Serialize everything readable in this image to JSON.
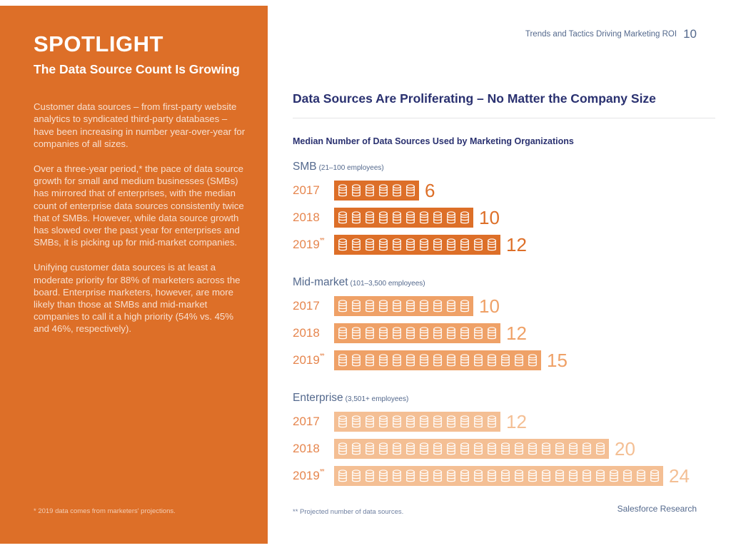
{
  "header": {
    "title": "Trends and Tactics Driving Marketing ROI",
    "page_number": "10"
  },
  "sidebar": {
    "kicker": "SPOTLIGHT",
    "title": "The Data Source Count Is Growing",
    "paragraphs": [
      "Customer data sources – from first-party website analytics to syndicated third-party databases – have been increasing in number year-over-year for companies of all sizes.",
      "Over a three-year period,* the pace of data source growth for small and medium businesses (SMBs) has mirrored that of enterprises, with the median count of enterprise data sources consistently twice that of SMBs. However, while data source growth has slowed over the past year for enterprises and SMBs, it is picking up for mid-market companies.",
      "Unifying customer data sources is at least a moderate priority for 88% of marketers across the board. Enterprise marketers, however, are more likely than those at SMBs and mid-market companies to call it a high priority (54% vs. 45% and 46%, respectively)."
    ],
    "footnote": "* 2019 data comes from marketers' projections.",
    "background_color": "#DD6F28"
  },
  "colors": {
    "orange_solid": "#DD6F28",
    "orange_mid": "#EFA167",
    "orange_light": "#F4BF94",
    "year_label": "#E6864E",
    "navy": "#2A3170",
    "slate": "#54698D"
  },
  "chart_data": {
    "type": "bar",
    "title": "Data Sources Are Proliferating – No Matter the Company Size",
    "subtitle": "Median Number of Data Sources Used by Marketing Organizations",
    "unit": "median number of data sources",
    "icon": "database-icon",
    "categories": [
      "2017",
      "2018",
      "2019**"
    ],
    "series": [
      {
        "name": "SMB",
        "sublabel": "(21–100 employees)",
        "values": [
          6,
          10,
          12
        ],
        "color": "#DD6F28"
      },
      {
        "name": "Mid-market",
        "sublabel": "(101–3,500 employees)",
        "values": [
          10,
          12,
          15
        ],
        "color": "#EFA167"
      },
      {
        "name": "Enterprise",
        "sublabel": "(3,501+ employees)",
        "values": [
          12,
          20,
          24
        ],
        "color": "#F4BF94"
      }
    ],
    "footnote": "** Projected number of data sources.",
    "source": "Salesforce Research"
  }
}
